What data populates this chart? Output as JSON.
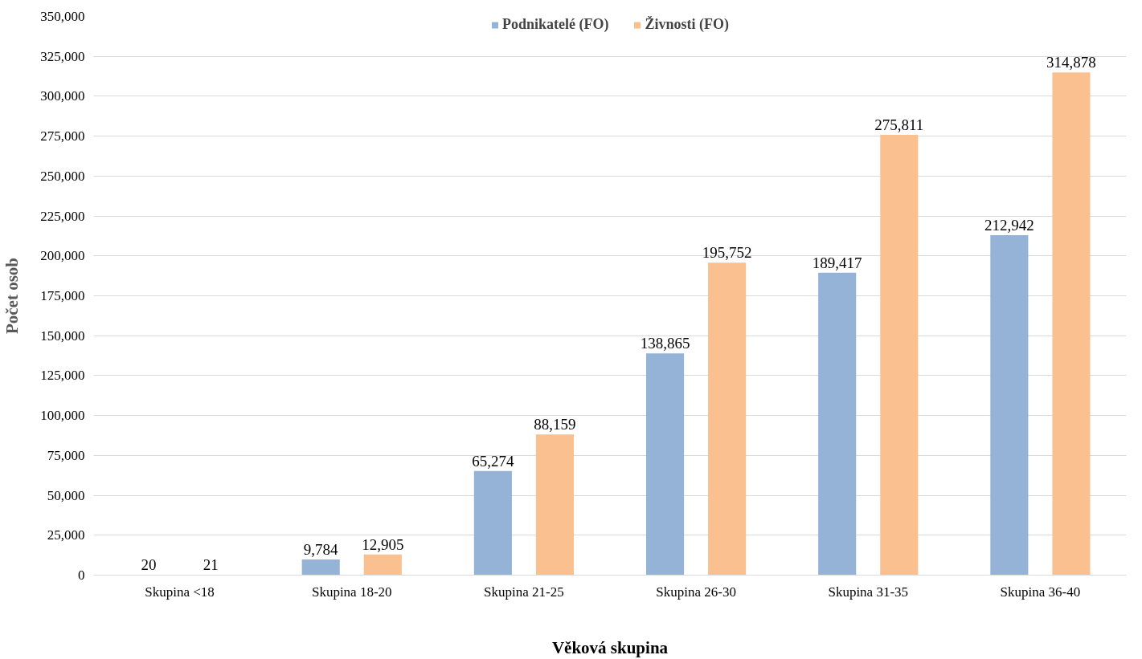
{
  "chart_data": {
    "type": "bar",
    "xlabel": "Věková skupina",
    "ylabel": "Počet osob",
    "categories": [
      "Skupina <18",
      "Skupina 18-20",
      "Skupina 21-25",
      "Skupina 26-30",
      "Skupina 31-35",
      "Skupina 36-40"
    ],
    "series": [
      {
        "name": "Podnikatelé (FO)",
        "color": "#95b3d7",
        "values": [
          20,
          9784,
          65274,
          138865,
          189417,
          212942
        ],
        "value_labels": [
          "20",
          "9,784",
          "65,274",
          "138,865",
          "189,417",
          "212,942"
        ]
      },
      {
        "name": "Živnosti (FO)",
        "color": "#fac090",
        "values": [
          21,
          12905,
          88159,
          195752,
          275811,
          314878
        ],
        "value_labels": [
          "21",
          "12,905",
          "88,159",
          "195,752",
          "275,811",
          "314,878"
        ]
      }
    ],
    "ylim": [
      0,
      350000
    ],
    "yticks": [
      0,
      {
        "value": 25000,
        "label": "25,000"
      },
      {
        "value": 50000,
        "label": "50,000"
      },
      {
        "value": 75000,
        "label": "75,000"
      },
      {
        "value": 100000,
        "label": "100,000"
      },
      {
        "value": 125000,
        "label": "125,000"
      },
      {
        "value": 150000,
        "label": "150,000"
      },
      {
        "value": 175000,
        "label": "175,000"
      },
      {
        "value": 200000,
        "label": "200,000"
      },
      {
        "value": 225000,
        "label": "225,000"
      },
      {
        "value": 250000,
        "label": "250,000"
      },
      {
        "value": 275000,
        "label": "275,000"
      },
      {
        "value": 300000,
        "label": "300,000"
      },
      {
        "value": 325000,
        "label": "325,000"
      },
      {
        "value": 350000,
        "label": "350,000"
      }
    ],
    "grid": "y",
    "legend": "top"
  }
}
